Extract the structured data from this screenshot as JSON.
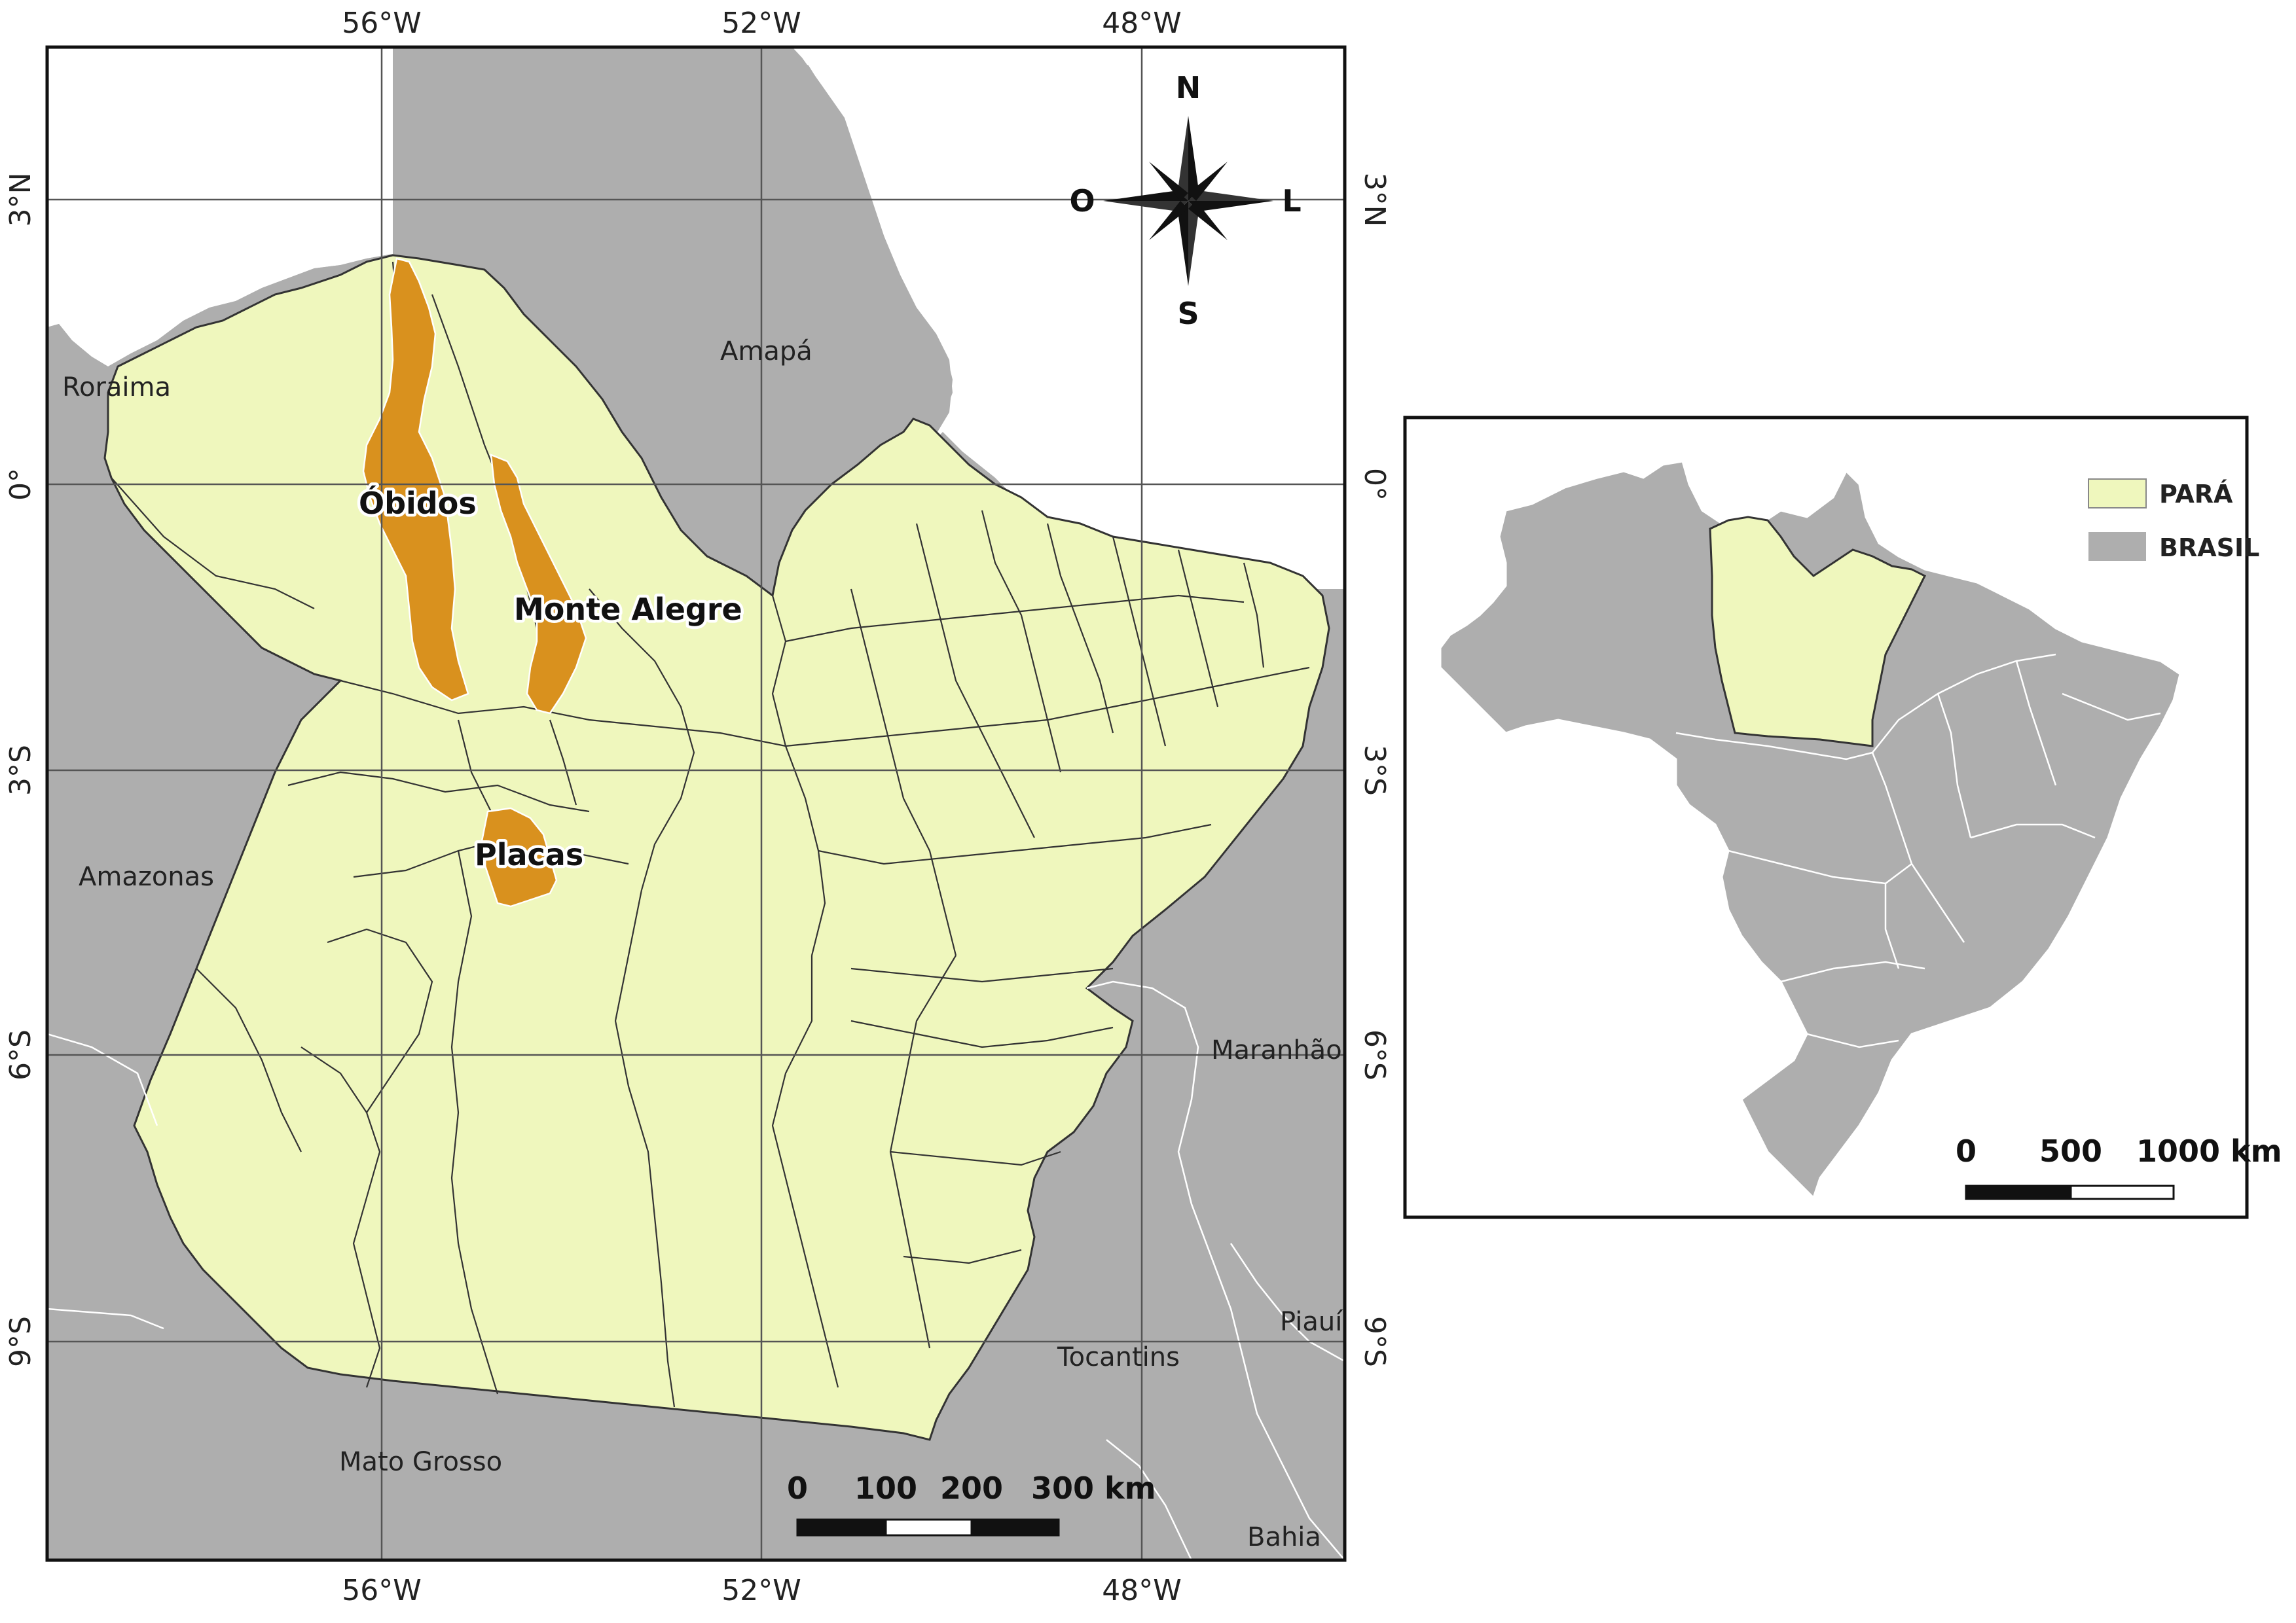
{
  "graticule": {
    "longitudes": [
      "56°W",
      "52°W",
      "48°W"
    ],
    "latitudes": [
      "3°N",
      "0°",
      "3°S",
      "6°S",
      "9°S"
    ]
  },
  "states": {
    "roraima": "Roraima",
    "amapa": "Amapá",
    "amazonas": "Amazonas",
    "maranhao": "Maranhão",
    "tocantins": "Tocantins",
    "piaui": "Piauí",
    "mato_grosso": "Mato Grosso",
    "bahia": "Bahia"
  },
  "municipalities": {
    "obidos": "Óbidos",
    "monte_alegre": "Monte Alegre",
    "placas": "Placas"
  },
  "compass": {
    "north": "N",
    "south": "S",
    "east": "L",
    "west": "O"
  },
  "main_scale": {
    "ticks": [
      "0",
      "100",
      "200",
      "300 km"
    ]
  },
  "inset": {
    "legend": [
      {
        "label": "PARÁ",
        "color": "#eff7bd"
      },
      {
        "label": "BRASIL",
        "color": "#aeaeae"
      }
    ],
    "scale": {
      "ticks": [
        "0",
        "500",
        "1000 km"
      ]
    }
  },
  "colors": {
    "para_fill": "#eff7bd",
    "brazil_fill": "#aeaeae",
    "highlight_fill": "#d9911e",
    "ocean": "#ffffff"
  }
}
